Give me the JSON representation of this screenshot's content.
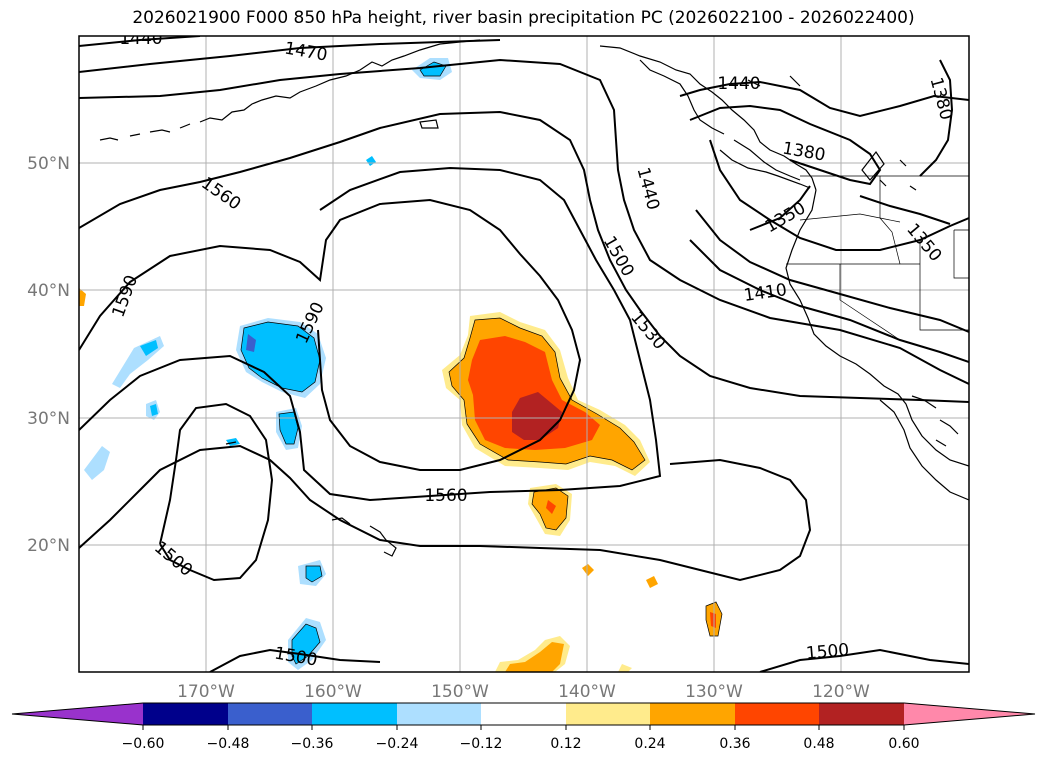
{
  "title": "2026021900 F000 850 hPa height, river basin precipitation PC (2026022100 - 2026022400)",
  "map": {
    "lat_labels": [
      "50°N",
      "40°N",
      "30°N",
      "20°N"
    ],
    "lon_labels": [
      "170°W",
      "160°W",
      "150°W",
      "140°W",
      "130°W",
      "120°W"
    ],
    "contour_labels": [
      "1440",
      "1470",
      "1440",
      "1380",
      "1380",
      "1560",
      "1440",
      "1350",
      "1350",
      "1500",
      "1590",
      "1590",
      "1410",
      "1530",
      "1560",
      "1500",
      "1500",
      "1500"
    ]
  },
  "colorbar": {
    "ticks": [
      "−0.60",
      "−0.48",
      "−0.36",
      "−0.24",
      "−0.12",
      "0.12",
      "0.24",
      "0.36",
      "0.48",
      "0.60"
    ],
    "colors": [
      "#9932CC",
      "#00008B",
      "#3A5FCD",
      "#00BFFF",
      "#ADDFFF",
      "#FFFFFF",
      "#FFEB8C",
      "#FFA500",
      "#FF4500",
      "#B22222",
      "#FF88AA"
    ]
  }
}
